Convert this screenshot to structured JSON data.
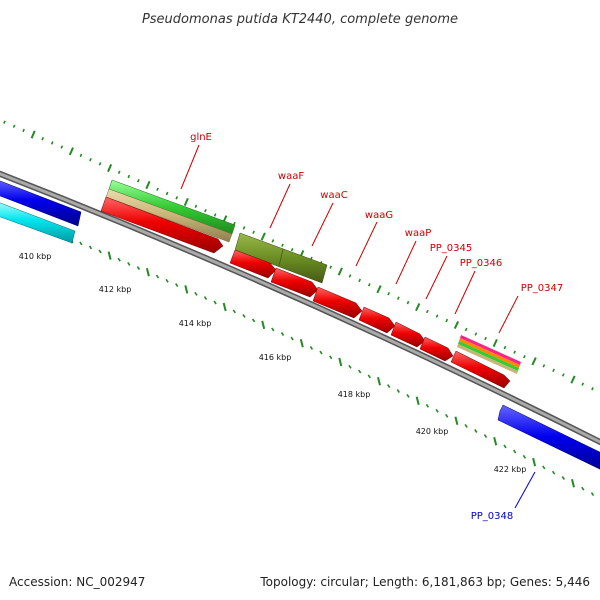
{
  "title": "Pseudomonas putida KT2440, complete genome",
  "footer": {
    "accession": "Accession: NC_002947",
    "summary": "Topology: circular; Length: 6,181,863 bp; Genes: 5,446"
  },
  "scale_labels": [
    "410 kbp",
    "412 kbp",
    "414 kbp",
    "416 kbp",
    "418 kbp",
    "420 kbp",
    "422 kbp"
  ],
  "gene_labels": [
    {
      "name": "glnE",
      "color": "#cc0000"
    },
    {
      "name": "waaF",
      "color": "#cc0000"
    },
    {
      "name": "waaC",
      "color": "#cc0000"
    },
    {
      "name": "waaG",
      "color": "#cc0000"
    },
    {
      "name": "waaP",
      "color": "#cc0000"
    },
    {
      "name": "PP_0345",
      "color": "#cc0000"
    },
    {
      "name": "PP_0346",
      "color": "#cc0000"
    },
    {
      "name": "PP_0347",
      "color": "#cc0000"
    },
    {
      "name": "PP_0348",
      "color": "#0000cc"
    }
  ],
  "colors": {
    "cds_forward": "#0000ee",
    "cds_reverse": "#ee0000",
    "gene_green": "#33cc33",
    "gene_tan": "#c8b478",
    "gene_olive": "#6b8e23",
    "gene_cyan": "#00e5ee",
    "backbone": "#888888",
    "tick": "#228b22"
  }
}
